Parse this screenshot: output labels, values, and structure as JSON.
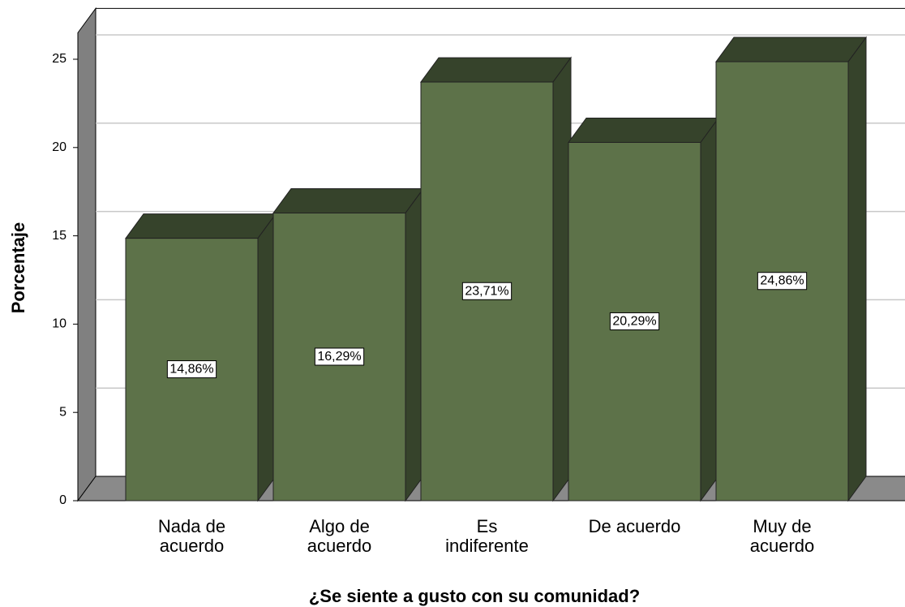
{
  "chart_data": {
    "type": "bar3d",
    "x_label": "¿Se siente a gusto con su comunidad?",
    "y_label": "Porcentaje",
    "categories": [
      "Nada de acuerdo",
      "Algo de acuerdo",
      "Es indiferente",
      "De acuerdo",
      "Muy de acuerdo"
    ],
    "values": [
      14.86,
      16.29,
      23.71,
      20.29,
      24.86
    ],
    "value_labels": [
      "14,86%",
      "16,29%",
      "23,71%",
      "20,29%",
      "24,86%"
    ],
    "color": "#5d7249",
    "shade_color": "#36432b",
    "ylim": [
      0,
      26.5
    ],
    "yticks": [
      0,
      5,
      10,
      15,
      20,
      25
    ],
    "grid": true
  }
}
